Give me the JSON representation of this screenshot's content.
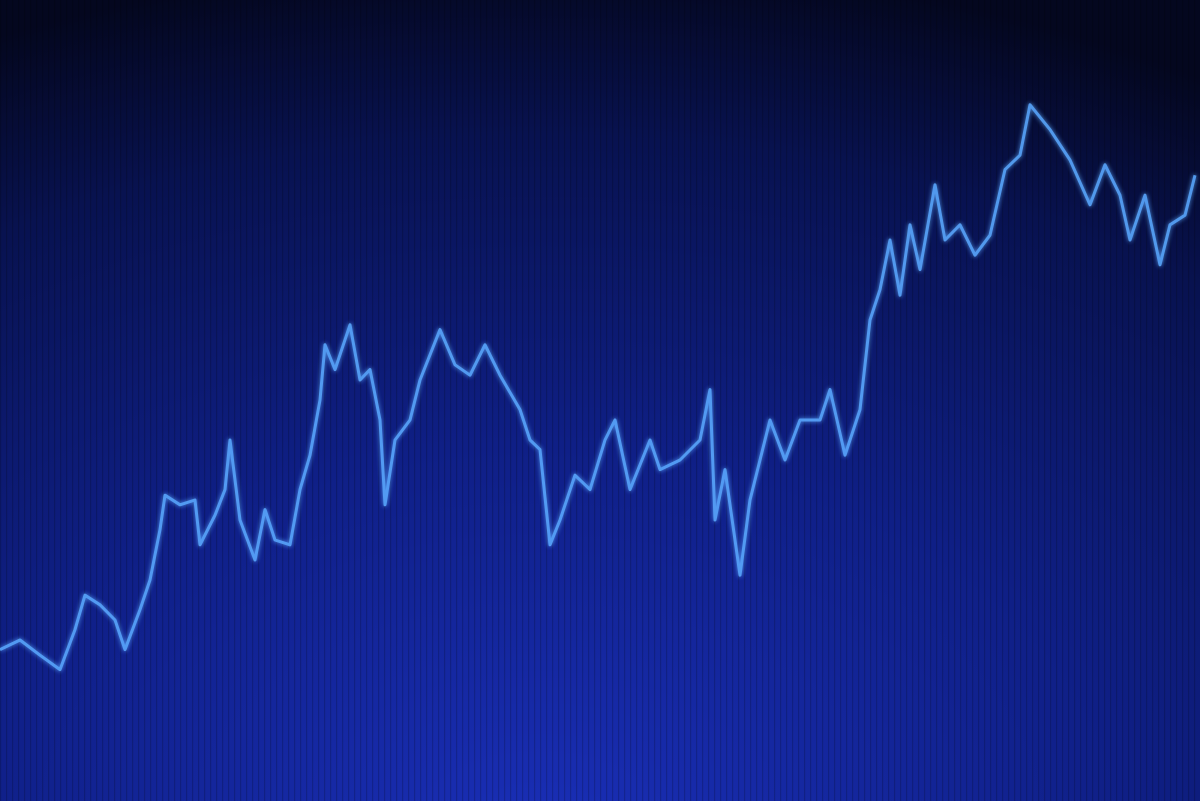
{
  "chart_data": {
    "type": "line",
    "color": "#5aa8ff",
    "x": [
      0,
      20,
      40,
      60,
      75,
      85,
      100,
      115,
      125,
      140,
      150,
      160,
      165,
      180,
      195,
      200,
      215,
      225,
      230,
      240,
      255,
      265,
      275,
      290,
      300,
      310,
      320,
      325,
      335,
      350,
      360,
      370,
      380,
      385,
      395,
      410,
      420,
      440,
      455,
      470,
      485,
      500,
      520,
      530,
      540,
      550,
      560,
      575,
      590,
      605,
      615,
      630,
      650,
      660,
      680,
      700,
      710,
      715,
      725,
      740,
      750,
      770,
      785,
      800,
      820,
      830,
      845,
      860,
      870,
      880,
      890,
      900,
      910,
      920,
      935,
      945,
      960,
      975,
      990,
      1005,
      1020,
      1030,
      1050,
      1070,
      1090,
      1105,
      1120,
      1130,
      1145,
      1160,
      1170,
      1185,
      1195
    ],
    "values": [
      18.8,
      20,
      18.1,
      16.3,
      21.3,
      25.6,
      24.4,
      22.5,
      18.8,
      23.8,
      27.5,
      33.8,
      38.1,
      36.9,
      37.5,
      31.9,
      35.6,
      38.8,
      45,
      35,
      30,
      36.3,
      32.5,
      31.9,
      38.8,
      43.1,
      50,
      56.9,
      53.8,
      59.4,
      52.5,
      53.8,
      47.5,
      36.9,
      45,
      47.5,
      52.5,
      58.8,
      54.4,
      53.1,
      56.9,
      53.1,
      48.8,
      45,
      43.8,
      31.9,
      35,
      40.6,
      38.8,
      45,
      47.5,
      38.8,
      45,
      41.3,
      42.5,
      45,
      51.3,
      35,
      41.3,
      28.1,
      37.5,
      47.5,
      42.5,
      47.5,
      47.5,
      51.3,
      43.1,
      48.8,
      60,
      63.8,
      70,
      63.1,
      71.9,
      66.3,
      76.9,
      70,
      71.9,
      68.1,
      70.6,
      78.8,
      80.6,
      86.9,
      83.8,
      80,
      74.4,
      79.4,
      75.6,
      70,
      75.6,
      66.9,
      71.9,
      73.1,
      78.1
    ],
    "xlim": [
      0,
      1200
    ],
    "ylim": [
      0,
      100
    ]
  }
}
